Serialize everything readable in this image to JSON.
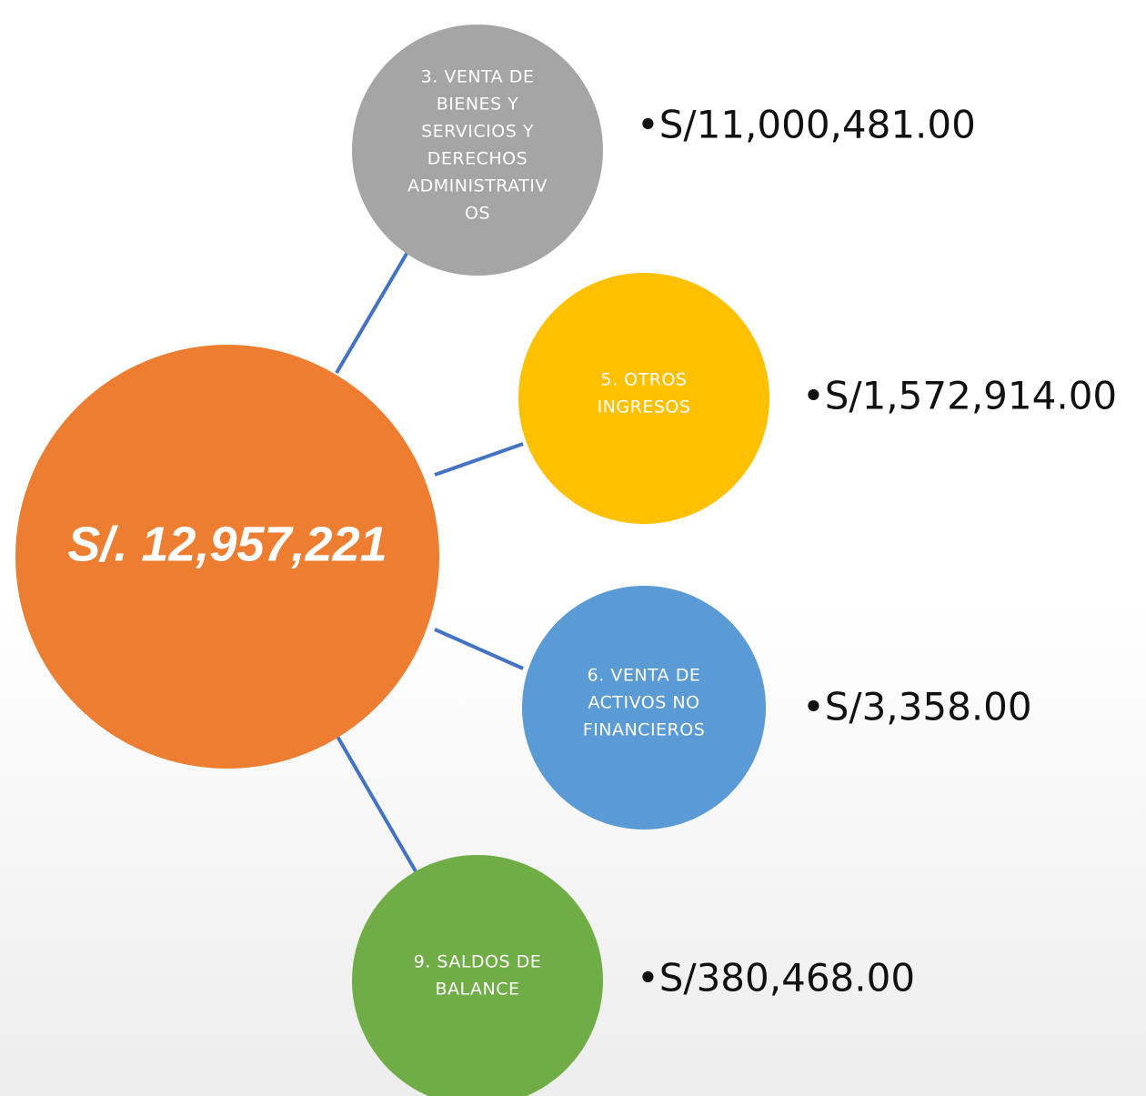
{
  "center": {
    "label": "S/. 12,957,221"
  },
  "nodes": [
    {
      "label_lines": [
        "3. VENTA DE",
        "BIENES Y",
        "SERVICIOS Y",
        "DERECHOS",
        "ADMINISTRATIV",
        "OS"
      ],
      "amount": "•S/11,000,481.00"
    },
    {
      "label_lines": [
        "5. OTROS",
        "INGRESOS"
      ],
      "amount": "•S/1,572,914.00"
    },
    {
      "label_lines": [
        "6. VENTA DE",
        "ACTIVOS NO",
        "FINANCIEROS"
      ],
      "amount": "•S/3,358.00"
    },
    {
      "label_lines": [
        "9. SALDOS DE",
        "BALANCE"
      ],
      "amount": "•S/380,468.00"
    }
  ]
}
